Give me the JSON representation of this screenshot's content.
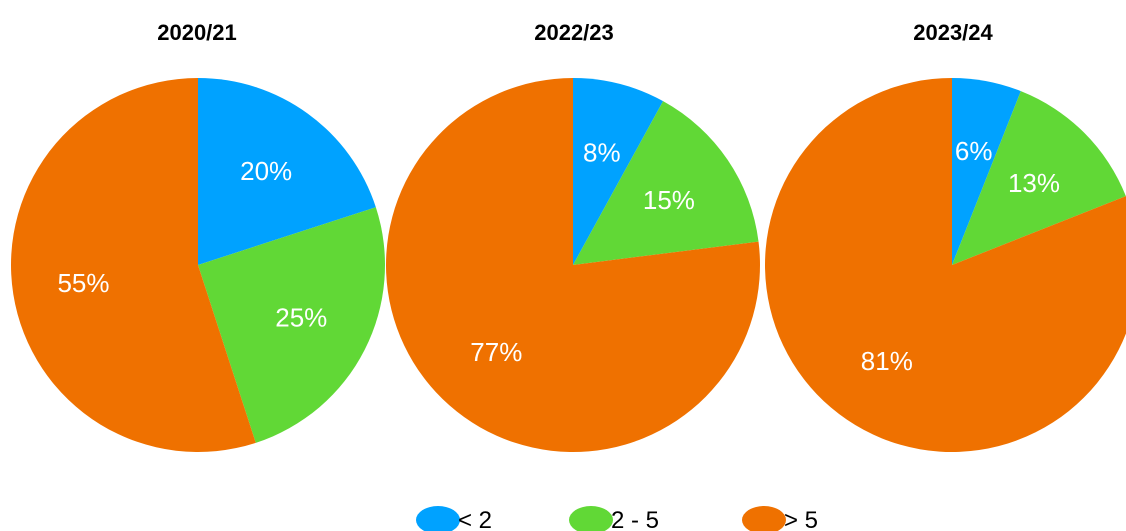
{
  "chart_data": [
    {
      "type": "pie",
      "title": "2020/21",
      "categories": [
        "< 2",
        "2 - 5",
        "> 5"
      ],
      "values": [
        20,
        25,
        55
      ],
      "labels": [
        "20%",
        "25%",
        "55%"
      ]
    },
    {
      "type": "pie",
      "title": "2022/23",
      "categories": [
        "< 2",
        "2 - 5",
        "> 5"
      ],
      "values": [
        8,
        15,
        77
      ],
      "labels": [
        "8%",
        "15%",
        "77%"
      ]
    },
    {
      "type": "pie",
      "title": "2023/24",
      "categories": [
        "< 2",
        "2 - 5",
        "> 5"
      ],
      "values": [
        6,
        13,
        81
      ],
      "labels": [
        "6%",
        "13%",
        "81%"
      ]
    }
  ],
  "legend": {
    "placement": "bottom",
    "items": [
      {
        "label": "< 2",
        "color": "#00a2ff"
      },
      {
        "label": "2 - 5",
        "color": "#61d836"
      },
      {
        "label": "> 5",
        "color": "#ef7100"
      }
    ]
  },
  "colors": {
    "lt2": "#00a2ff",
    "mid": "#61d836",
    "gt5": "#ef7100"
  }
}
